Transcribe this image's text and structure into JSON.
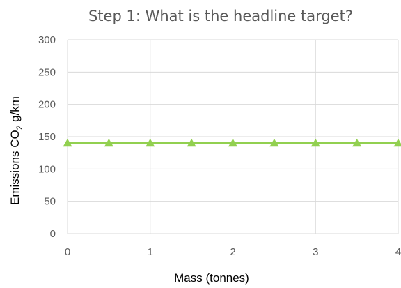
{
  "chart_data": {
    "type": "line",
    "title": "Step 1: What is the headline target?",
    "xlabel": "Mass (tonnes)",
    "ylabel": {
      "before_subscript": "Emissions CO",
      "subscript": "2",
      "after_subscript": " g/km"
    },
    "xlim": [
      0,
      4
    ],
    "ylim": [
      0,
      300
    ],
    "x_ticks": [
      0,
      1,
      2,
      3,
      4
    ],
    "y_ticks": [
      0,
      50,
      100,
      150,
      200,
      250,
      300
    ],
    "grid": true,
    "legend": "none",
    "series": [
      {
        "x": [
          0,
          0.5,
          1,
          1.5,
          2,
          2.5,
          3,
          3.5,
          4
        ],
        "y": [
          140,
          140,
          140,
          140,
          140,
          140,
          140,
          140,
          140
        ],
        "color": "#92d050",
        "marker": "triangle"
      }
    ]
  }
}
